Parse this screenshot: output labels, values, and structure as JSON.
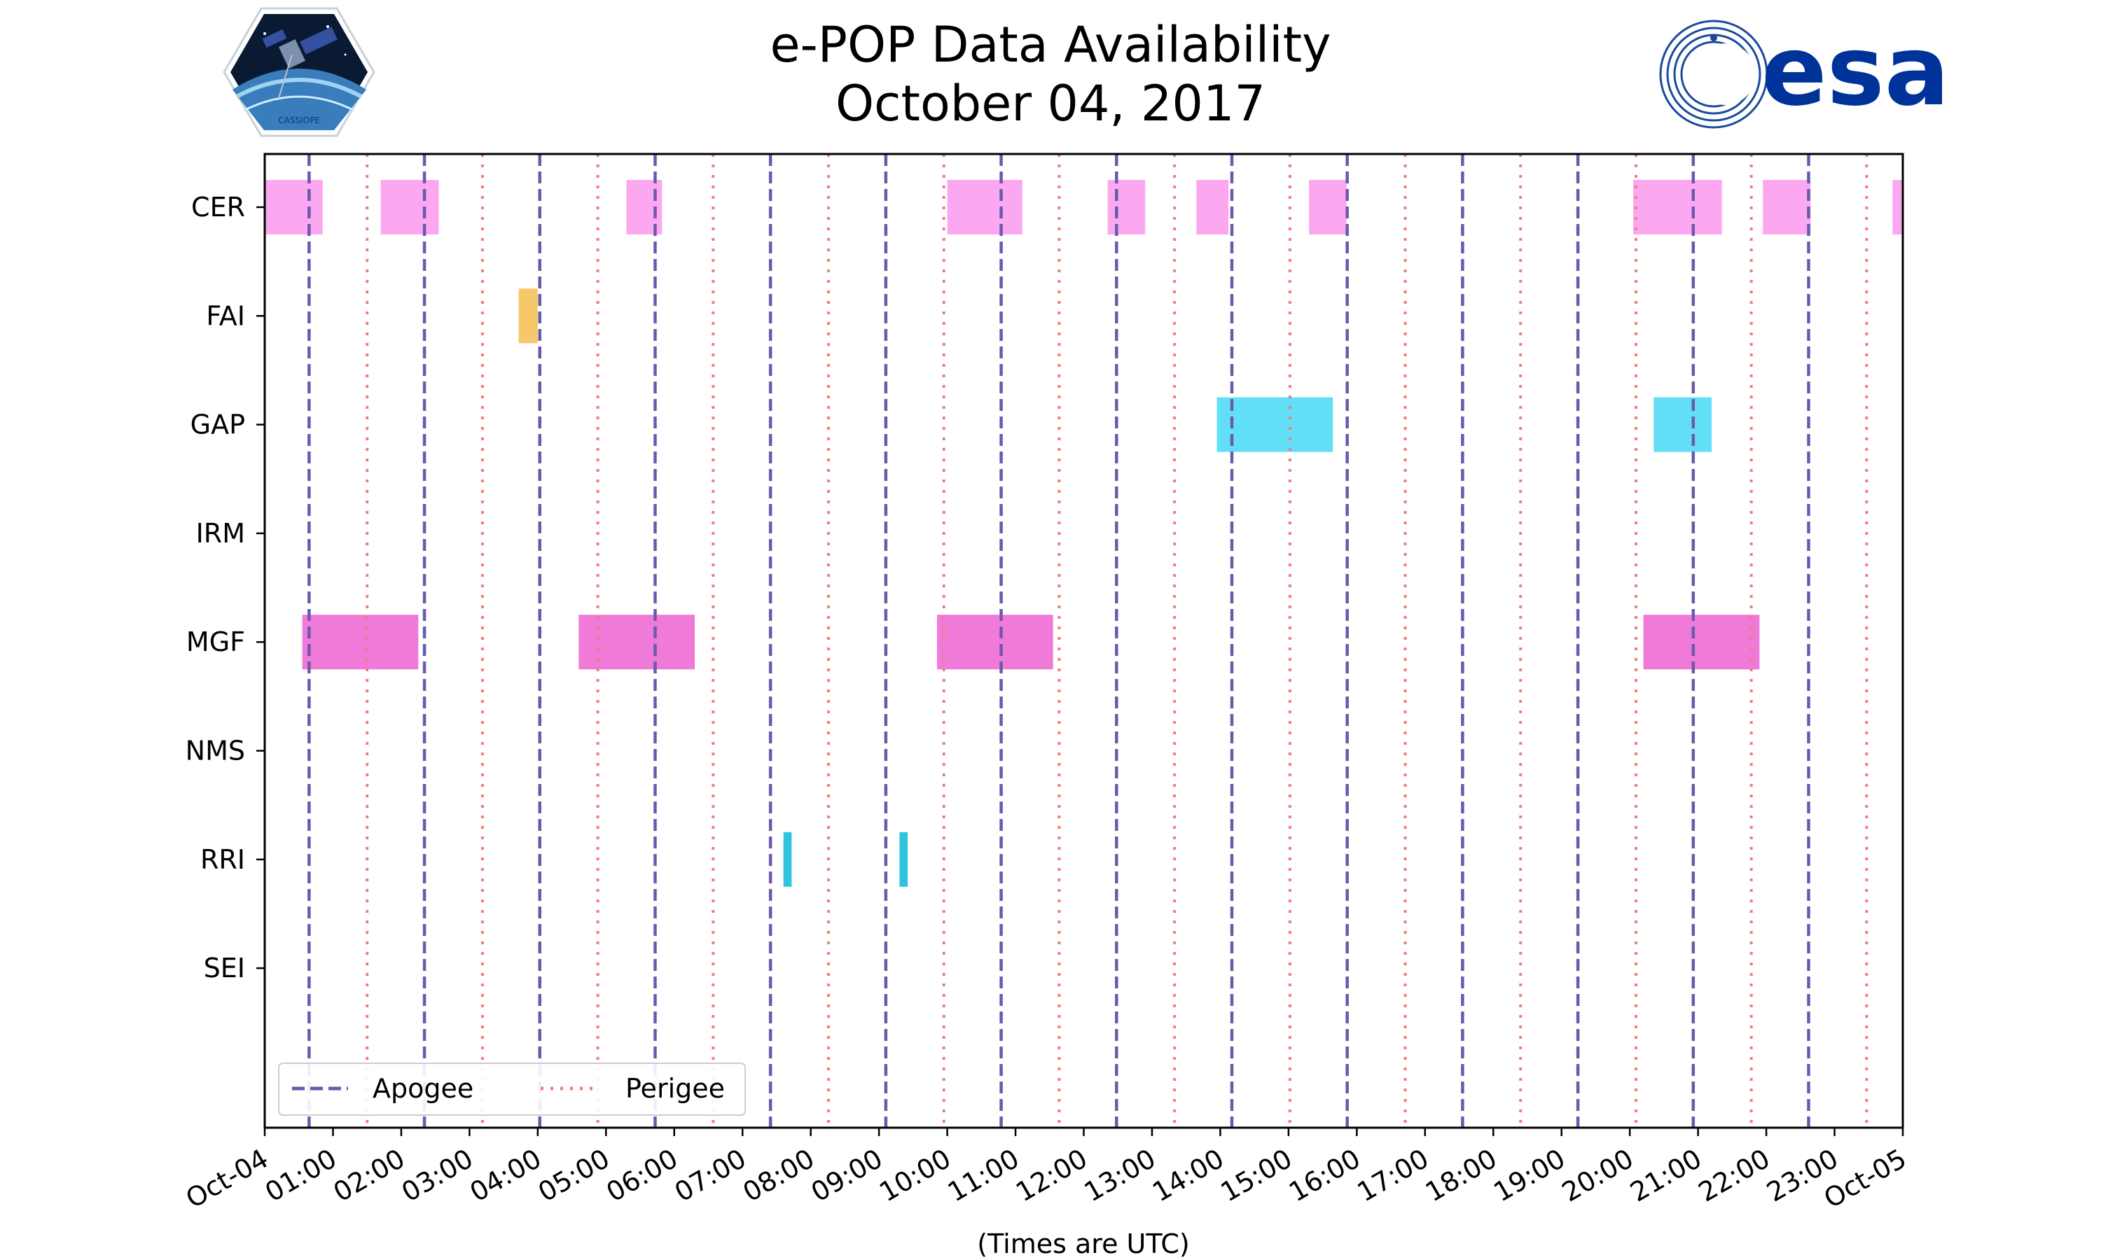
{
  "title": {
    "line1": "e-POP Data Availability",
    "line2": "October 04, 2017"
  },
  "logos": {
    "left": "cassiope-mission-logo",
    "left_text": "CASSIOPE",
    "right": "esa-logo",
    "right_text": "esa"
  },
  "colors": {
    "apogee": "#6a5aad",
    "perigee": "#f27c7c",
    "CER": "#fca8f0",
    "FAI": "#f7c86a",
    "GAP": "#62dff7",
    "MGF": "#f07ad8",
    "RRI": "#2ec4dd",
    "brand_esa": "#003399"
  },
  "chart_data": {
    "type": "timeline",
    "title": "e-POP Data Availability\nOctober 04, 2017",
    "xlabel": "(Times are UTC)",
    "ylabel": "",
    "xlim": [
      0,
      24
    ],
    "x_tick_values": [
      0,
      1,
      2,
      3,
      4,
      5,
      6,
      7,
      8,
      9,
      10,
      11,
      12,
      13,
      14,
      15,
      16,
      17,
      18,
      19,
      20,
      21,
      22,
      23,
      24
    ],
    "x_tick_labels": [
      "Oct-04",
      "01:00",
      "02:00",
      "03:00",
      "04:00",
      "05:00",
      "06:00",
      "07:00",
      "08:00",
      "09:00",
      "10:00",
      "11:00",
      "12:00",
      "13:00",
      "14:00",
      "15:00",
      "16:00",
      "17:00",
      "18:00",
      "19:00",
      "20:00",
      "21:00",
      "22:00",
      "23:00",
      "Oct-05"
    ],
    "instruments": [
      "CER",
      "FAI",
      "GAP",
      "IRM",
      "MGF",
      "NMS",
      "RRI",
      "SEI"
    ],
    "intervals": {
      "CER": [
        [
          0.0,
          0.85
        ],
        [
          1.7,
          2.55
        ],
        [
          5.3,
          5.82
        ],
        [
          10.0,
          11.1
        ],
        [
          12.35,
          12.9
        ],
        [
          13.65,
          14.12
        ],
        [
          15.3,
          15.85
        ],
        [
          20.05,
          21.35
        ],
        [
          21.95,
          22.65
        ],
        [
          23.85,
          24.0
        ]
      ],
      "FAI": [
        [
          3.72,
          4.0
        ]
      ],
      "GAP": [
        [
          13.95,
          15.65
        ],
        [
          20.35,
          21.2
        ]
      ],
      "IRM": [],
      "MGF": [
        [
          0.55,
          2.25
        ],
        [
          4.6,
          6.3
        ],
        [
          9.85,
          11.55
        ],
        [
          20.2,
          21.9
        ]
      ],
      "NMS": [],
      "RRI": [
        [
          7.6,
          7.72
        ],
        [
          9.3,
          9.42
        ]
      ],
      "SEI": []
    },
    "apogee": [
      0.65,
      2.34,
      4.03,
      5.72,
      7.41,
      9.1,
      10.79,
      12.48,
      14.17,
      15.86,
      17.55,
      19.24,
      20.93,
      22.62
    ],
    "perigee": [
      1.5,
      3.19,
      4.88,
      6.57,
      8.26,
      9.95,
      11.64,
      13.33,
      15.02,
      16.71,
      18.4,
      20.09,
      21.78,
      23.47
    ],
    "legend": {
      "apogee": "Apogee",
      "perigee": "Perigee",
      "position": "lower-left"
    }
  }
}
